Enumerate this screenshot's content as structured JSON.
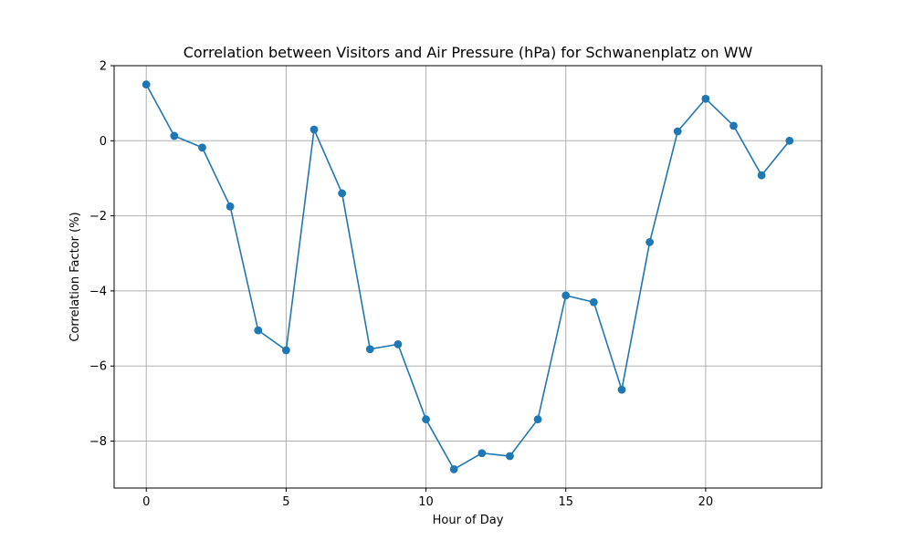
{
  "chart_data": {
    "type": "line",
    "title": "Correlation between Visitors and Air Pressure (hPa) for Schwanenplatz on WW",
    "xlabel": "Hour of Day",
    "ylabel": "Correlation Factor (%)",
    "x": [
      0,
      1,
      2,
      3,
      4,
      5,
      6,
      7,
      8,
      9,
      10,
      11,
      12,
      13,
      14,
      15,
      16,
      17,
      18,
      19,
      20,
      21,
      22,
      23
    ],
    "series": [
      {
        "values": [
          1.5,
          0.13,
          -0.18,
          -1.75,
          -5.05,
          -5.58,
          0.3,
          -1.4,
          -5.55,
          -5.42,
          -7.42,
          -8.75,
          -8.32,
          -8.4,
          -7.42,
          -4.12,
          -4.3,
          -6.63,
          -2.7,
          0.25,
          1.12,
          0.4,
          -0.92,
          0.0
        ],
        "color": "#1f77b4"
      }
    ],
    "xlim": [
      -1.15,
      24.15
    ],
    "ylim": [
      -9.25,
      2.0
    ],
    "xticks": [
      0,
      5,
      10,
      15,
      20
    ],
    "yticks": [
      2,
      0,
      -2,
      -4,
      -6,
      -8
    ],
    "xtick_labels": [
      "0",
      "5",
      "10",
      "15",
      "20"
    ],
    "ytick_labels": [
      "2",
      "0",
      "−2",
      "−4",
      "−6",
      "−8"
    ],
    "grid": true,
    "marker": "circle"
  }
}
